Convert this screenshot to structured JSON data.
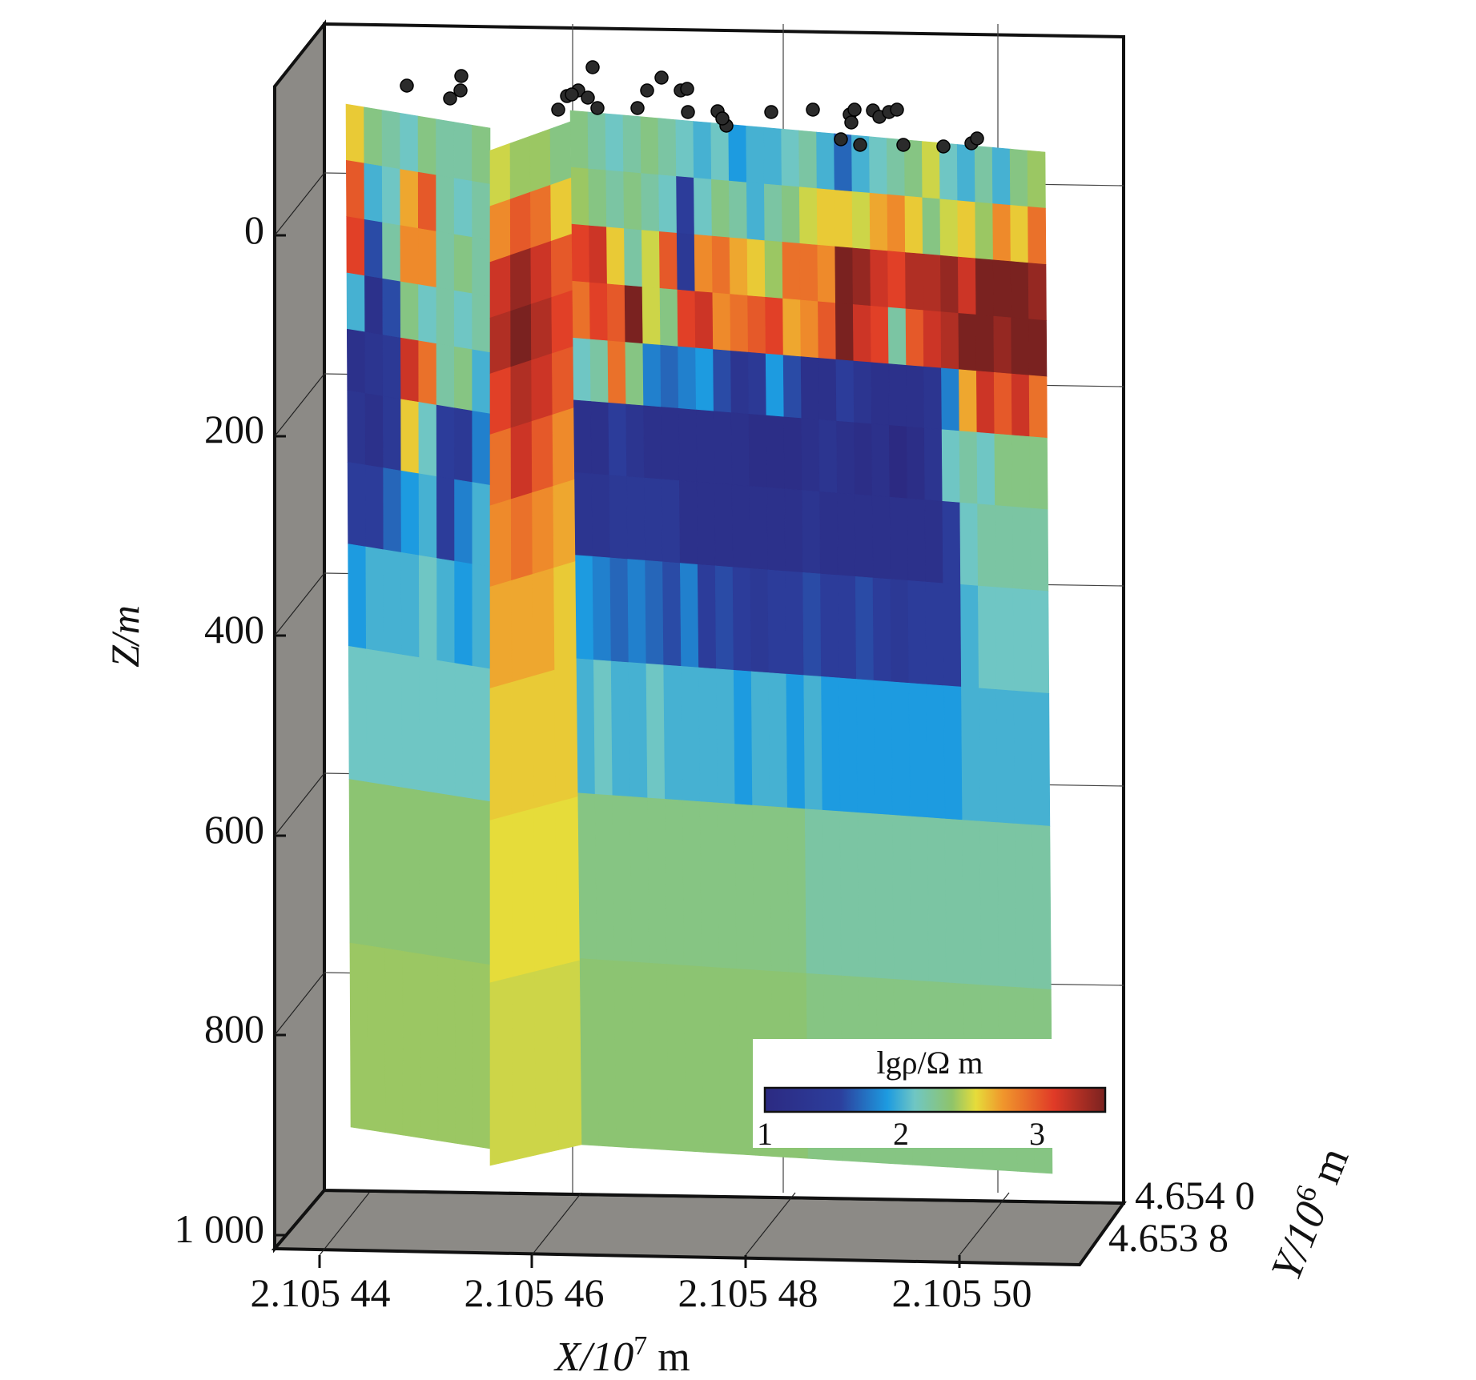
{
  "chart_data": {
    "type": "heatmap",
    "subtype": "3d-resistivity-model-slices",
    "title": "",
    "xlabel": {
      "text": "X/10",
      "sup": "7",
      "unit": " m"
    },
    "ylabel": {
      "text": "Y/10",
      "sup": "6",
      "unit": " m"
    },
    "zlabel": "Z/m",
    "x_ticks": [
      "2.105 44",
      "2.105 46",
      "2.105 48",
      "2.105 50"
    ],
    "y_ticks": [
      "4.654 0",
      "4.653 8"
    ],
    "z_ticks": [
      "0",
      "200",
      "400",
      "600",
      "800",
      "1 000"
    ],
    "z_range": [
      -130,
      1000
    ],
    "z_inverted": true,
    "grid": true,
    "colorbar": {
      "title": "lgρ/Ω m",
      "ticks": [
        "1",
        "2",
        "3"
      ],
      "range": [
        1,
        3.5
      ],
      "placement": "bottom-right, inside",
      "colormap": "jet"
    },
    "colors": {
      "wall": "#8c8a86",
      "frame": "#111111",
      "station": "#2b2b2b"
    },
    "stations": "black dots at the surface marking measurement sites",
    "front_slice": {
      "cols": 27,
      "rows": 11,
      "lg_rho": [
        [
          2.3,
          2.2,
          2.1,
          2.2,
          2.3,
          2.2,
          2.1,
          2.0,
          2.1,
          1.9,
          2.0,
          2.0,
          2.1,
          2.2,
          2.0,
          1.7,
          2.0,
          2.1,
          2.2,
          2.3,
          2.5,
          2.1,
          2.0,
          2.2,
          2.0,
          2.3,
          2.4
        ],
        [
          2.4,
          2.3,
          2.2,
          2.3,
          2.2,
          2.1,
          1.5,
          2.1,
          2.3,
          2.2,
          2.0,
          2.2,
          2.3,
          2.5,
          2.6,
          2.6,
          2.5,
          2.7,
          2.8,
          2.6,
          2.3,
          2.5,
          2.6,
          2.4,
          2.8,
          2.6,
          2.9
        ],
        [
          3.1,
          3.2,
          2.6,
          2.2,
          2.5,
          3.0,
          1.4,
          2.8,
          2.9,
          2.7,
          2.6,
          2.4,
          2.9,
          2.9,
          2.8,
          3.5,
          3.4,
          3.2,
          3.1,
          3.3,
          3.3,
          3.4,
          3.2,
          3.5,
          3.6,
          3.5,
          3.4
        ],
        [
          2.9,
          3.1,
          3.0,
          3.5,
          2.5,
          2.3,
          3.1,
          3.2,
          2.8,
          2.9,
          3.0,
          3.1,
          2.7,
          2.8,
          3.0,
          3.5,
          3.2,
          3.1,
          2.2,
          3.0,
          3.2,
          3.3,
          3.5,
          3.6,
          3.4,
          3.5,
          3.5
        ],
        [
          2.1,
          2.2,
          2.9,
          2.3,
          1.8,
          1.7,
          1.8,
          1.9,
          1.6,
          1.3,
          1.4,
          1.9,
          1.6,
          1.2,
          1.2,
          1.5,
          1.3,
          1.2,
          1.2,
          1.2,
          1.3,
          1.8,
          2.7,
          3.2,
          3.0,
          3.2,
          2.9
        ],
        [
          1.2,
          1.2,
          1.5,
          1.3,
          1.2,
          1.2,
          1.2,
          1.2,
          1.2,
          1.2,
          1.1,
          1.1,
          1.1,
          1.2,
          1.3,
          1.2,
          1.1,
          1.2,
          1.0,
          1.1,
          1.3,
          2.1,
          2.2,
          2.1,
          2.3,
          2.3,
          2.3
        ],
        [
          1.3,
          1.3,
          1.4,
          1.4,
          1.4,
          1.4,
          1.2,
          1.2,
          1.2,
          1.2,
          1.2,
          1.2,
          1.2,
          1.3,
          1.2,
          1.2,
          1.2,
          1.2,
          1.2,
          1.2,
          1.2,
          1.5,
          2.1,
          2.2,
          2.2,
          2.2,
          2.2
        ],
        [
          1.9,
          1.8,
          1.7,
          1.8,
          1.7,
          1.6,
          1.8,
          1.5,
          1.6,
          1.5,
          1.4,
          1.5,
          1.5,
          1.6,
          1.5,
          1.5,
          1.6,
          1.5,
          1.4,
          1.5,
          1.5,
          1.5,
          2.0,
          2.1,
          2.1,
          2.1,
          2.1
        ],
        [
          2.0,
          2.1,
          2.0,
          2.0,
          2.1,
          2.0,
          2.0,
          2.0,
          2.0,
          1.9,
          2.0,
          2.0,
          1.9,
          2.0,
          1.9,
          1.9,
          1.9,
          1.9,
          1.9,
          1.9,
          1.9,
          1.9,
          2.0,
          2.0,
          2.0,
          2.0,
          2.0
        ],
        [
          2.3,
          2.3,
          2.3,
          2.3,
          2.3,
          2.3,
          2.3,
          2.3,
          2.3,
          2.3,
          2.3,
          2.3,
          2.3,
          2.2,
          2.2,
          2.2,
          2.2,
          2.2,
          2.2,
          2.2,
          2.2,
          2.2,
          2.2,
          2.2,
          2.2,
          2.2,
          2.2
        ],
        [
          2.35,
          2.35,
          2.35,
          2.35,
          2.35,
          2.35,
          2.35,
          2.35,
          2.35,
          2.35,
          2.35,
          2.35,
          2.35,
          2.3,
          2.3,
          2.3,
          2.3,
          2.3,
          2.3,
          2.3,
          2.3,
          2.3,
          2.3,
          2.3,
          2.3,
          2.3,
          2.3
        ]
      ]
    },
    "left_slice": {
      "cols": 8,
      "rows": 11,
      "lg_rho": [
        [
          2.6,
          2.3,
          2.2,
          2.1,
          2.3,
          2.2,
          2.2,
          2.3
        ],
        [
          3.0,
          2.0,
          2.1,
          2.7,
          3.0,
          2.2,
          2.1,
          2.2
        ],
        [
          3.1,
          1.6,
          2.2,
          2.8,
          2.8,
          2.2,
          2.3,
          2.2
        ],
        [
          2.0,
          1.2,
          1.6,
          2.3,
          2.1,
          2.2,
          2.1,
          2.2
        ],
        [
          1.2,
          1.3,
          1.4,
          3.2,
          2.9,
          2.2,
          2.3,
          2.0
        ],
        [
          1.3,
          1.2,
          1.4,
          2.6,
          2.1,
          1.5,
          1.4,
          1.8
        ],
        [
          1.5,
          1.5,
          1.7,
          1.9,
          2.0,
          1.5,
          1.8,
          2.0
        ],
        [
          1.9,
          2.0,
          2.0,
          2.0,
          2.1,
          2.0,
          1.9,
          2.0
        ],
        [
          2.1,
          2.1,
          2.1,
          2.1,
          2.1,
          2.1,
          2.1,
          2.1
        ],
        [
          2.35,
          2.35,
          2.35,
          2.35,
          2.35,
          2.35,
          2.35,
          2.35
        ],
        [
          2.4,
          2.4,
          2.4,
          2.4,
          2.4,
          2.4,
          2.4,
          2.4
        ]
      ]
    },
    "cross_slice": {
      "cols": 4,
      "rows": 11,
      "lg_rho": [
        [
          2.5,
          2.4,
          2.4,
          2.3
        ],
        [
          2.8,
          3.0,
          2.9,
          2.6
        ],
        [
          3.2,
          3.4,
          3.2,
          3.0
        ],
        [
          3.3,
          3.5,
          3.3,
          3.1
        ],
        [
          3.1,
          3.3,
          3.2,
          3.0
        ],
        [
          2.9,
          3.2,
          3.0,
          2.8
        ],
        [
          2.8,
          2.9,
          2.8,
          2.7
        ],
        [
          2.7,
          2.7,
          2.7,
          2.6
        ],
        [
          2.6,
          2.6,
          2.6,
          2.6
        ],
        [
          2.55,
          2.55,
          2.55,
          2.55
        ],
        [
          2.5,
          2.5,
          2.5,
          2.5
        ]
      ]
    }
  }
}
